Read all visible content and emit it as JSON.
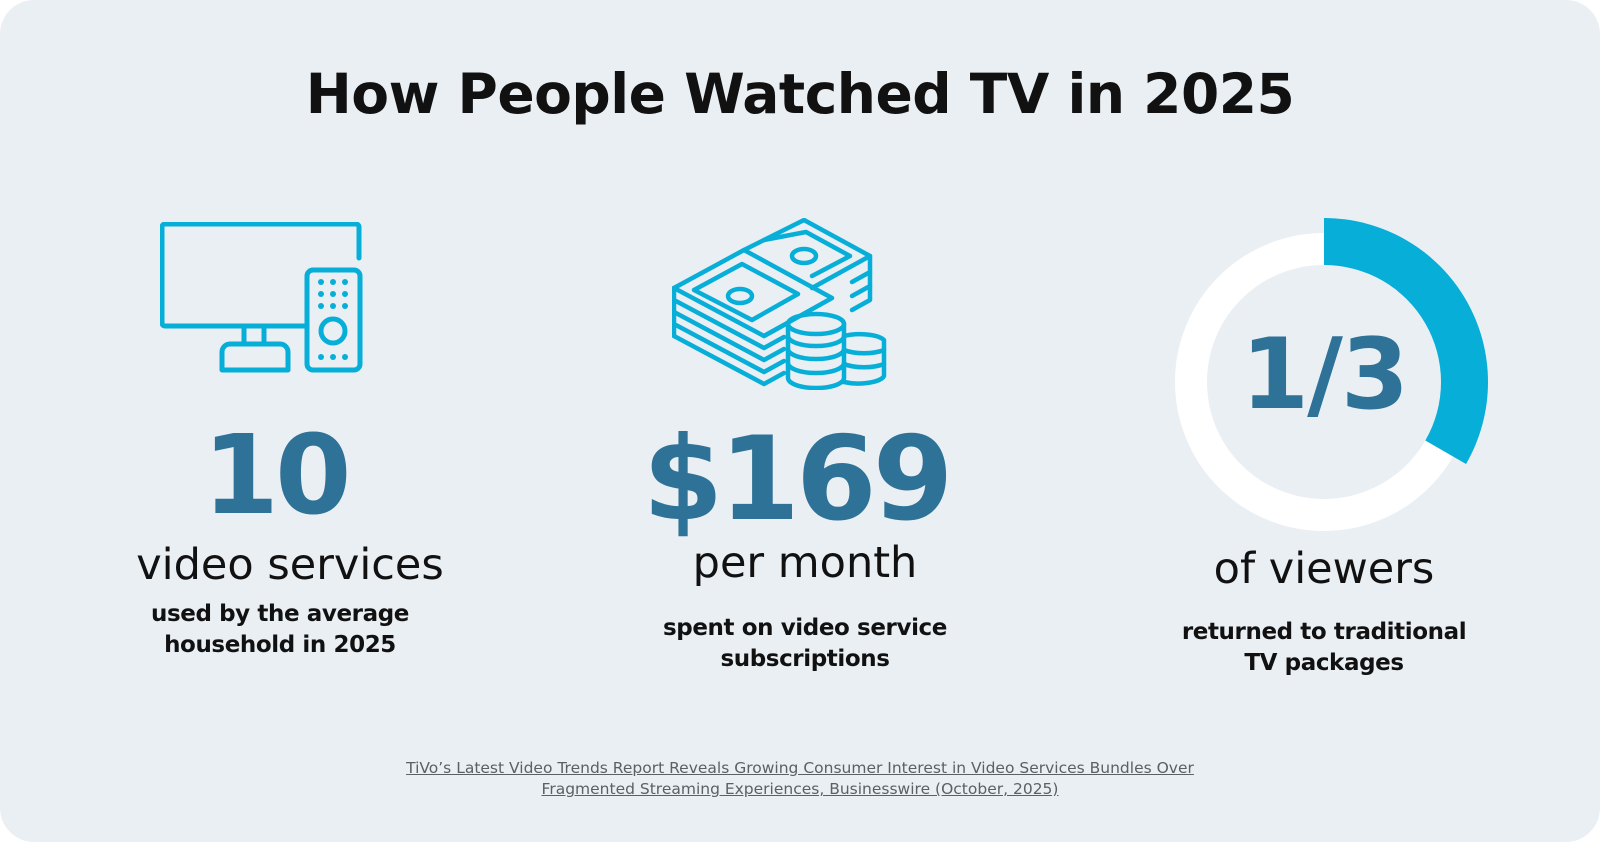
{
  "title": "How People Watched TV in 2025",
  "stats": [
    {
      "icon": "tv-remote-icon",
      "value": "10",
      "unit": "video services",
      "desc_line1": "used by the average",
      "desc_line2": "household in 2025"
    },
    {
      "icon": "money-stack-coins-icon",
      "value": "$169",
      "unit": "per month",
      "desc_line1": "spent on video service",
      "desc_line2": "subscriptions"
    },
    {
      "icon": "donut-progress-icon",
      "value": "1/3",
      "fraction": 0.3333,
      "unit": "of viewers",
      "desc_line1": "returned to traditional",
      "desc_line2": "TV packages"
    }
  ],
  "source": {
    "line1": "TiVo’s Latest Video Trends Report Reveals Growing Consumer Interest in Video Services Bundles Over",
    "line2": "Fragmented Streaming Experiences, Businesswire (October, 2025)"
  },
  "colors": {
    "background": "#eaeff4",
    "accent": "#07aed8",
    "number": "#2e7297",
    "ring": "#ffffff"
  }
}
